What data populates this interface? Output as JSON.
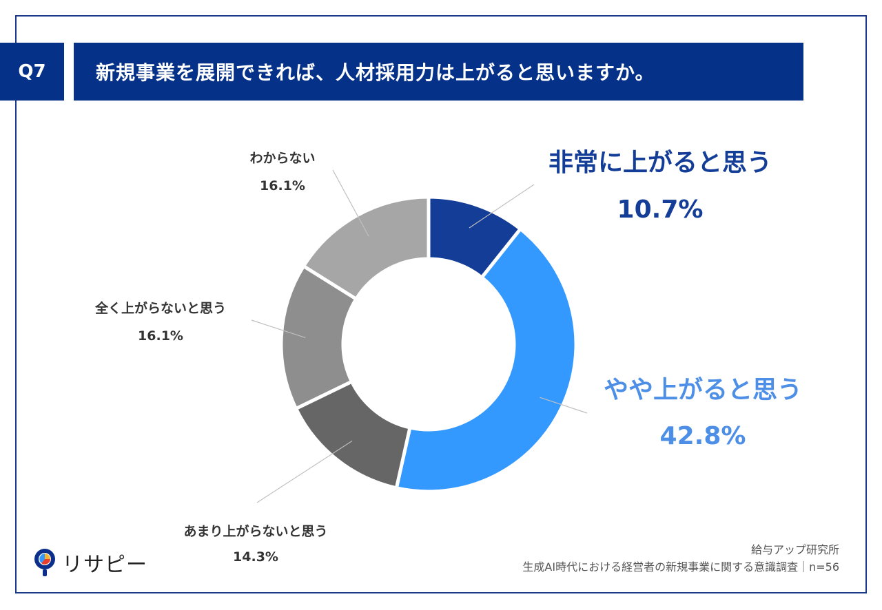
{
  "header": {
    "badge": "Q7",
    "question": "新規事業を展開できれば、人材採用力は上がると思いますか。"
  },
  "chart_data": {
    "type": "pie",
    "variant": "donut",
    "unit": "%",
    "categories": [
      "非常に上がると思う",
      "やや上がると思う",
      "あまり上がらないと思う",
      "全く上がらないと思う",
      "わからない"
    ],
    "values": [
      10.7,
      42.8,
      14.3,
      16.1,
      16.1
    ],
    "labels": [
      "10.7%",
      "42.8%",
      "14.3%",
      "16.1%",
      "16.1%"
    ],
    "colors": [
      "#133d96",
      "#3399ff",
      "#666666",
      "#8e8e8e",
      "#a6a6a6"
    ]
  },
  "source": {
    "org": "給与アップ研究所",
    "survey": "生成AI時代における経営者の新規事業に関する意識調査｜n=56"
  },
  "brand": {
    "name": "リサピー",
    "icon": "lightbulb-pie-icon"
  }
}
